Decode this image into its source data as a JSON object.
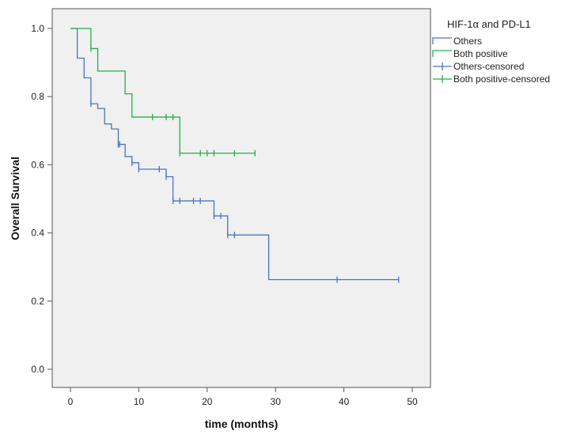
{
  "chart_data": {
    "type": "line",
    "subtype": "kaplan-meier",
    "title": "",
    "xlabel": "time (months)",
    "ylabel": "Overall Survival",
    "xlim": [
      0,
      50
    ],
    "ylim": [
      0.0,
      1.0
    ],
    "xticks": [
      0,
      10,
      20,
      30,
      40,
      50
    ],
    "yticks": [
      0.0,
      0.2,
      0.4,
      0.6,
      0.8,
      1.0
    ],
    "xtick_labels": [
      "0",
      "10",
      "20",
      "30",
      "40",
      "50"
    ],
    "ytick_labels": [
      "0.0",
      "0.2",
      "0.4",
      "0.6",
      "0.8",
      "1.0"
    ],
    "grid": false,
    "legend": {
      "title": "HIF-1α and PD-L1",
      "placement": "outside-right",
      "entries": [
        "Others",
        "Both positive",
        "Others-censored",
        "Both positive-censored"
      ]
    },
    "series": [
      {
        "name": "Others",
        "color": "#4a74c4",
        "steps": [
          [
            0,
            1.0
          ],
          [
            1,
            0.913
          ],
          [
            2,
            0.855
          ],
          [
            3,
            0.779
          ],
          [
            4,
            0.765
          ],
          [
            5,
            0.72
          ],
          [
            6,
            0.705
          ],
          [
            7,
            0.66
          ],
          [
            8,
            0.624
          ],
          [
            9,
            0.606
          ],
          [
            10,
            0.587
          ],
          [
            14,
            0.565
          ],
          [
            15,
            0.494
          ],
          [
            21,
            0.45
          ],
          [
            23,
            0.394
          ],
          [
            29,
            0.263
          ],
          [
            48,
            0.263
          ]
        ],
        "censored": [
          3,
          7,
          7.2,
          9,
          10,
          13,
          14,
          15,
          16,
          18,
          19,
          21,
          22,
          23,
          24,
          39,
          48
        ]
      },
      {
        "name": "Both positive",
        "color": "#22b04b",
        "steps": [
          [
            0,
            1.0
          ],
          [
            3,
            0.941
          ],
          [
            4,
            0.875
          ],
          [
            8,
            0.808
          ],
          [
            9,
            0.74
          ],
          [
            16,
            0.634
          ],
          [
            27,
            0.634
          ]
        ],
        "censored": [
          3,
          12,
          14,
          15,
          16,
          19,
          20,
          21,
          24,
          27
        ]
      }
    ]
  }
}
